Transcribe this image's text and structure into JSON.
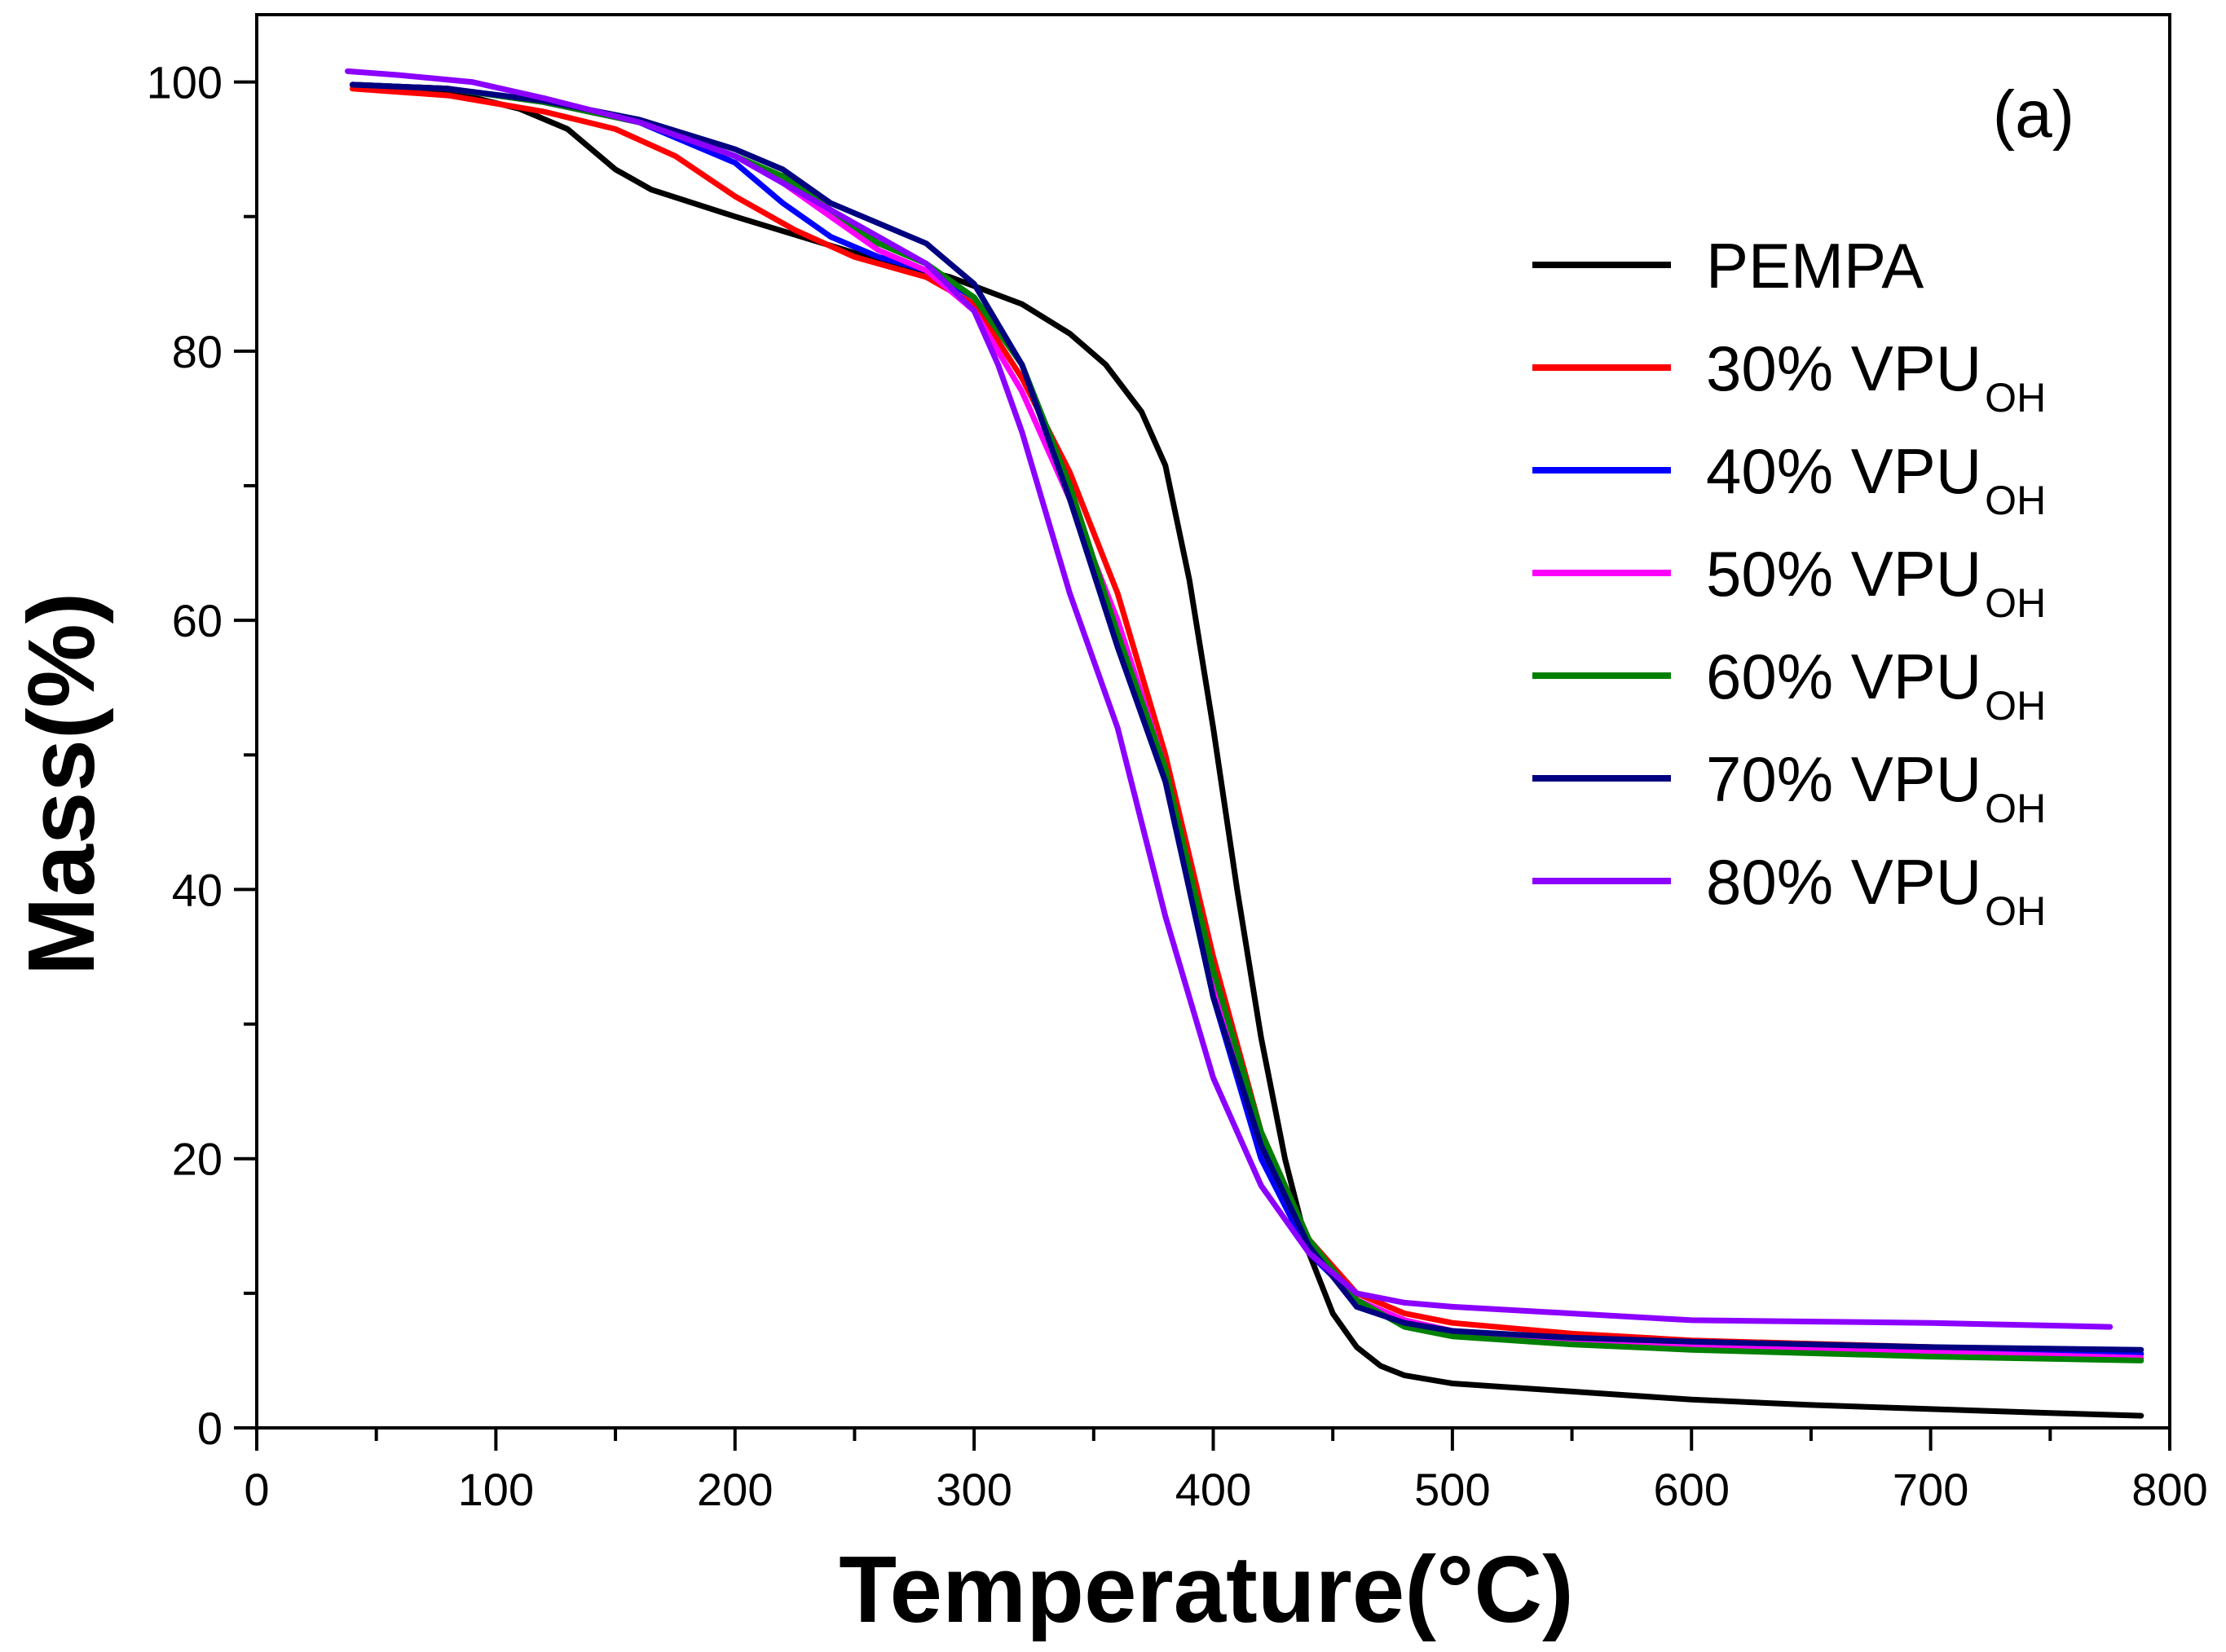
{
  "chart_data": {
    "type": "line",
    "panel_label": "(a)",
    "xlabel": "Temperature(°C)",
    "ylabel": "Mass(%)",
    "xlim": [
      0,
      800
    ],
    "ylim": [
      0,
      105
    ],
    "xticks": [
      0,
      100,
      200,
      300,
      400,
      500,
      600,
      700,
      800
    ],
    "yticks": [
      0,
      20,
      40,
      60,
      80,
      100
    ],
    "grid": false,
    "legend_position": "right",
    "series": [
      {
        "name": "PEMPA",
        "sub": "",
        "color": "#000000",
        "x": [
          40,
          80,
          110,
          130,
          150,
          165,
          200,
          250,
          290,
          320,
          340,
          355,
          370,
          380,
          390,
          400,
          410,
          420,
          430,
          440,
          450,
          460,
          470,
          480,
          500,
          550,
          600,
          650,
          700,
          750,
          788
        ],
        "y": [
          99.8,
          99.3,
          98,
          96.5,
          93.5,
          92,
          90,
          87.3,
          85.5,
          83.5,
          81.3,
          79,
          75.5,
          71.5,
          63,
          52,
          40,
          29,
          20,
          13,
          8.5,
          6,
          4.6,
          3.9,
          3.3,
          2.7,
          2.1,
          1.7,
          1.4,
          1.1,
          0.9
        ]
      },
      {
        "name": "30% VPU",
        "sub": "OH",
        "color": "#ff0000",
        "x": [
          40,
          80,
          120,
          150,
          175,
          200,
          225,
          250,
          280,
          300,
          320,
          340,
          360,
          380,
          400,
          420,
          440,
          460,
          480,
          500,
          550,
          600,
          700,
          788
        ],
        "y": [
          99.5,
          99,
          97.8,
          96.5,
          94.5,
          91.5,
          89,
          87,
          85.5,
          83.5,
          78,
          71,
          62,
          50,
          35,
          22,
          14,
          10,
          8.5,
          7.8,
          7,
          6.5,
          6,
          5.5
        ]
      },
      {
        "name": "40% VPU",
        "sub": "OH",
        "color": "#0000ff",
        "x": [
          40,
          80,
          120,
          160,
          200,
          220,
          240,
          260,
          280,
          300,
          320,
          340,
          360,
          380,
          400,
          420,
          440,
          460,
          480,
          500,
          550,
          600,
          700,
          788
        ],
        "y": [
          99.8,
          99.5,
          98.5,
          97,
          94,
          91,
          88.5,
          87,
          86,
          84,
          79,
          70,
          59,
          49,
          32,
          20,
          13,
          9.5,
          8,
          7.2,
          6.6,
          6.2,
          5.8,
          5.5
        ]
      },
      {
        "name": "50% VPU",
        "sub": "OH",
        "color": "#ff00ff",
        "x": [
          40,
          80,
          120,
          160,
          200,
          220,
          240,
          260,
          280,
          300,
          320,
          340,
          360,
          380,
          400,
          420,
          440,
          460,
          480,
          500,
          550,
          600,
          700,
          788
        ],
        "y": [
          99.8,
          99.5,
          98.5,
          97,
          94.5,
          92.5,
          90,
          87.5,
          86,
          83,
          77,
          69,
          60,
          49,
          33,
          21,
          13.5,
          9.5,
          8,
          7.2,
          6.6,
          6.2,
          5.6,
          5.2
        ]
      },
      {
        "name": "60% VPU",
        "sub": "OH",
        "color": "#008000",
        "x": [
          40,
          80,
          120,
          160,
          200,
          220,
          240,
          260,
          280,
          300,
          320,
          340,
          360,
          380,
          400,
          420,
          440,
          460,
          480,
          500,
          550,
          600,
          700,
          788
        ],
        "y": [
          99.8,
          99.5,
          98.5,
          97,
          94.5,
          93,
          90.5,
          88,
          86.5,
          84,
          79,
          70,
          59,
          49,
          34,
          22,
          14,
          9.5,
          7.5,
          6.8,
          6.2,
          5.8,
          5.3,
          5
        ]
      },
      {
        "name": "70% VPU",
        "sub": "OH",
        "color": "#000080",
        "x": [
          40,
          80,
          120,
          160,
          200,
          220,
          240,
          260,
          280,
          300,
          320,
          340,
          360,
          380,
          400,
          420,
          440,
          460,
          480,
          500,
          550,
          600,
          700,
          788
        ],
        "y": [
          99.8,
          99.5,
          98.6,
          97.2,
          95,
          93.5,
          91,
          89.5,
          88,
          85,
          79,
          69,
          58,
          48,
          32,
          21,
          13.5,
          9,
          7.8,
          7.2,
          6.7,
          6.4,
          6,
          5.8
        ]
      },
      {
        "name": "80% VPU",
        "sub": "OH",
        "color": "#8b00ff",
        "x": [
          38,
          60,
          90,
          120,
          160,
          200,
          220,
          240,
          260,
          280,
          300,
          310,
          320,
          330,
          340,
          360,
          380,
          400,
          420,
          440,
          460,
          480,
          500,
          550,
          600,
          700,
          775
        ],
        "y": [
          100.8,
          100.5,
          100,
          98.8,
          97,
          94.5,
          92.5,
          90.5,
          88.5,
          86.5,
          83,
          79,
          74,
          68,
          62,
          52,
          38,
          26,
          18,
          13,
          10,
          9.3,
          9,
          8.5,
          8,
          7.8,
          7.5
        ]
      }
    ]
  }
}
